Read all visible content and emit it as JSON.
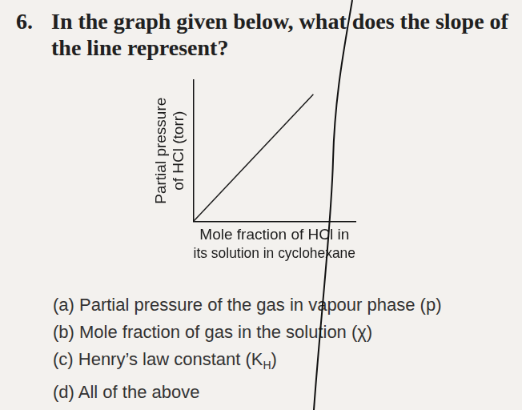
{
  "question": {
    "number": "6.",
    "text": "In the graph given below, what does the slope of the line represent?"
  },
  "chart_data": {
    "type": "line",
    "x": [
      0,
      0.74
    ],
    "values": [
      0,
      0.9
    ],
    "xlim": [
      0,
      1
    ],
    "ylim": [
      0,
      1
    ],
    "x_label": [
      "Mole fraction of HCl in",
      "its solution in cyclohexane"
    ],
    "y_label": [
      "Partial pressure",
      "of HCl (torr)"
    ],
    "color": "#1a1a1a",
    "grid": false,
    "tick_labels": false
  },
  "options": [
    {
      "label": "(a)",
      "text": [
        "Partial pressure of the gas in vapour phase (p)"
      ]
    },
    {
      "label": "(b)",
      "text": [
        "Mole fraction of gas in the solution (χ)"
      ]
    },
    {
      "label": "(c)",
      "text": [
        "Henry’s law constant (K",
        {
          "sub": "H"
        },
        ")"
      ]
    },
    {
      "label": "(d)",
      "text": [
        "All of the above"
      ]
    }
  ]
}
